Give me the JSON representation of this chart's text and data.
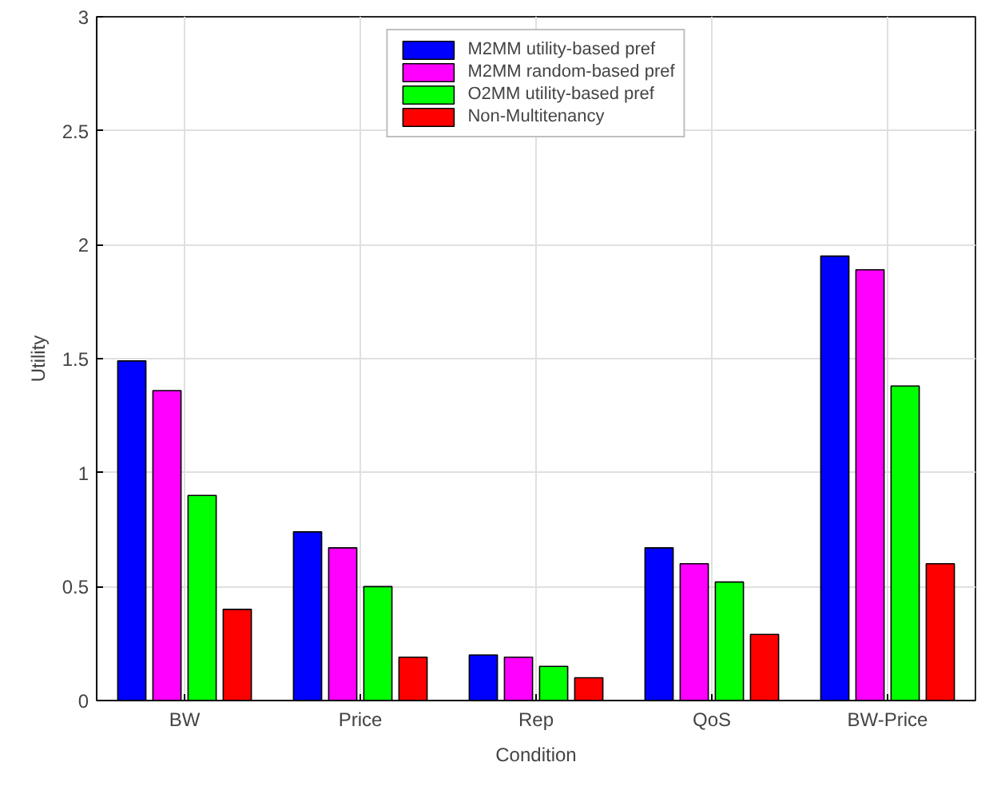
{
  "chart_data": {
    "type": "bar",
    "xlabel": "Condition",
    "ylabel": "Utility",
    "categories": [
      "BW",
      "Price",
      "Rep",
      "QoS",
      "BW-Price"
    ],
    "series": [
      {
        "name": "M2MM utility-based pref",
        "color": "#0000ff",
        "values": [
          1.49,
          0.74,
          0.2,
          0.67,
          1.95
        ]
      },
      {
        "name": "M2MM random-based pref",
        "color": "#ff00ff",
        "values": [
          1.36,
          0.67,
          0.19,
          0.6,
          1.89
        ]
      },
      {
        "name": "O2MM utility-based pref",
        "color": "#00ff00",
        "values": [
          0.9,
          0.5,
          0.15,
          0.52,
          1.38
        ]
      },
      {
        "name": "Non-Multitenancy",
        "color": "#ff0000",
        "values": [
          0.4,
          0.19,
          0.1,
          0.29,
          0.6
        ]
      }
    ],
    "ylim": [
      0,
      3
    ],
    "yticks": [
      0,
      0.5,
      1,
      1.5,
      2,
      2.5,
      3
    ],
    "grid": true,
    "legend": "top"
  }
}
